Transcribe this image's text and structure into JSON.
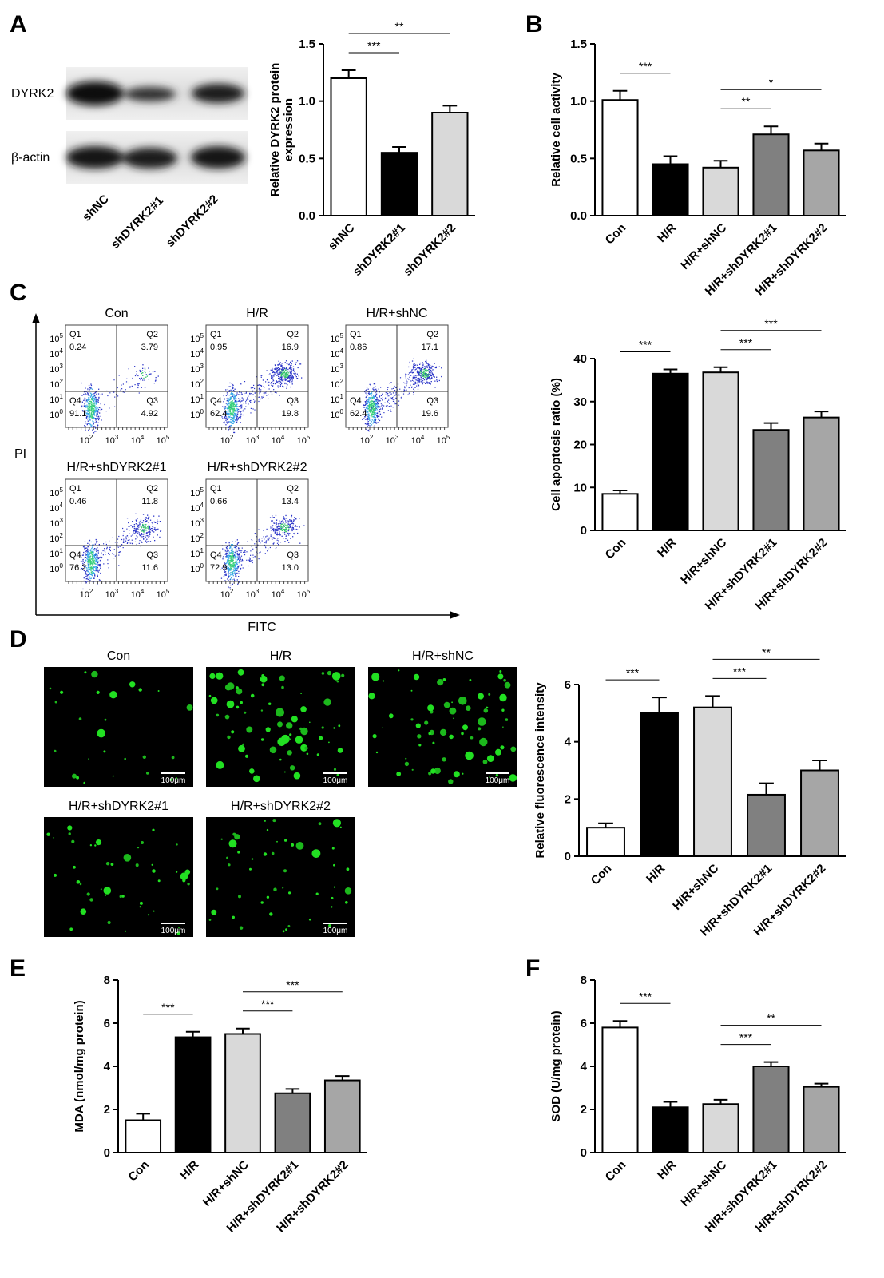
{
  "panels": [
    "A",
    "B",
    "C",
    "D",
    "E",
    "F"
  ],
  "blot": {
    "rows": [
      "DYRK2",
      "β-actin"
    ],
    "lanes": [
      "shNC",
      "shDYRK2#1",
      "shDYRK2#2"
    ]
  },
  "flow": {
    "y_label": "PI",
    "x_label": "FITC",
    "tick_base": "10",
    "xtick_exponents": [
      2,
      3,
      4,
      5
    ],
    "ytick_exponents": [
      0,
      1,
      2,
      3,
      4,
      5
    ],
    "quadrant_names": [
      "Q1",
      "Q2",
      "Q3",
      "Q4"
    ],
    "plots": [
      {
        "title": "Con",
        "quadrants": [
          "0.24",
          "3.79",
          "4.92",
          "91.1"
        ]
      },
      {
        "title": "H/R",
        "quadrants": [
          "0.95",
          "16.9",
          "19.8",
          "62.4"
        ]
      },
      {
        "title": "H/R+shNC",
        "quadrants": [
          "0.86",
          "17.1",
          "19.6",
          "62.4"
        ]
      },
      {
        "title": "H/R+shDYRK2#1",
        "quadrants": [
          "0.46",
          "11.8",
          "11.6",
          "76.2"
        ]
      },
      {
        "title": "H/R+shDYRK2#2",
        "quadrants": [
          "0.66",
          "13.4",
          "13.0",
          "72.9"
        ]
      }
    ]
  },
  "images": {
    "scale_bar": "100μm",
    "titles": [
      "Con",
      "H/R",
      "H/R+shNC",
      "H/R+shDYRK2#1",
      "H/R+shDYRK2#2"
    ]
  },
  "chart_data": [
    {
      "type": "bar",
      "y_label": [
        "Relative DYRK2 protein",
        "expression"
      ],
      "categories": [
        "shNC",
        "shDYRK2#1",
        "shDYRK2#2"
      ],
      "values": [
        1.2,
        0.55,
        0.9
      ],
      "errors": [
        0.07,
        0.05,
        0.06
      ],
      "colors": [
        "#ffffff",
        "#000000",
        "#d9d9d9"
      ],
      "ylim": [
        0,
        1.5
      ],
      "yticks": [
        {
          "value": 0,
          "label": "0.0"
        },
        {
          "value": 0.5,
          "label": "0.5"
        },
        {
          "value": 1,
          "label": "1.0"
        },
        {
          "value": 1.5,
          "label": "1.5"
        }
      ],
      "significance": [
        {
          "between": [
            "shNC",
            "shDYRK2#1"
          ],
          "label": "***"
        },
        {
          "between": [
            "shNC",
            "shDYRK2#2"
          ],
          "label": "**"
        }
      ]
    },
    {
      "type": "bar",
      "y_label": "Relative cell activity",
      "categories": [
        "Con",
        "H/R",
        "H/R+shNC",
        "H/R+shDYRK2#1",
        "H/R+shDYRK2#2"
      ],
      "values": [
        1.01,
        0.45,
        0.42,
        0.71,
        0.57
      ],
      "errors": [
        0.08,
        0.07,
        0.06,
        0.07,
        0.06
      ],
      "colors": [
        "#ffffff",
        "#000000",
        "#d9d9d9",
        "#808080",
        "#a6a6a6"
      ],
      "ylim": [
        0,
        1.5
      ],
      "yticks": [
        {
          "value": 0,
          "label": "0.0"
        },
        {
          "value": 0.5,
          "label": "0.5"
        },
        {
          "value": 1,
          "label": "1.0"
        },
        {
          "value": 1.5,
          "label": "1.5"
        }
      ],
      "significance": [
        {
          "between": [
            "Con",
            "H/R"
          ],
          "label": "***"
        },
        {
          "between": [
            "H/R+shNC",
            "H/R+shDYRK2#1"
          ],
          "label": "**"
        },
        {
          "between": [
            "H/R+shNC",
            "H/R+shDYRK2#2"
          ],
          "label": "*"
        }
      ]
    },
    {
      "type": "bar",
      "y_label": "Cell apoptosis ratio (%)",
      "categories": [
        "Con",
        "H/R",
        "H/R+shNC",
        "H/R+shDYRK2#1",
        "H/R+shDYRK2#2"
      ],
      "values": [
        8.5,
        36.5,
        36.8,
        23.4,
        26.3
      ],
      "errors": [
        0.8,
        1.0,
        1.2,
        1.6,
        1.4
      ],
      "colors": [
        "#ffffff",
        "#000000",
        "#d9d9d9",
        "#808080",
        "#a6a6a6"
      ],
      "ylim": [
        0,
        40
      ],
      "yticks": [
        0,
        10,
        20,
        30,
        40
      ],
      "significance": [
        {
          "between": [
            "Con",
            "H/R"
          ],
          "label": "***"
        },
        {
          "between": [
            "H/R+shNC",
            "H/R+shDYRK2#1"
          ],
          "label": "***"
        },
        {
          "between": [
            "H/R+shNC",
            "H/R+shDYRK2#2"
          ],
          "label": "***"
        }
      ]
    },
    {
      "type": "bar",
      "y_label": "Relative fluorescence intensity",
      "categories": [
        "Con",
        "H/R",
        "H/R+shNC",
        "H/R+shDYRK2#1",
        "H/R+shDYRK2#2"
      ],
      "values": [
        1.0,
        5.0,
        5.2,
        2.15,
        3.0
      ],
      "errors": [
        0.15,
        0.55,
        0.4,
        0.4,
        0.35
      ],
      "colors": [
        "#ffffff",
        "#000000",
        "#d9d9d9",
        "#808080",
        "#a6a6a6"
      ],
      "ylim": [
        0,
        6
      ],
      "yticks": [
        0,
        2,
        4,
        6
      ],
      "significance": [
        {
          "between": [
            "Con",
            "H/R"
          ],
          "label": "***"
        },
        {
          "between": [
            "H/R+shNC",
            "H/R+shDYRK2#1"
          ],
          "label": "***"
        },
        {
          "between": [
            "H/R+shNC",
            "H/R+shDYRK2#2"
          ],
          "label": "**"
        }
      ]
    },
    {
      "type": "bar",
      "y_label": "MDA (nmol/mg protein)",
      "categories": [
        "Con",
        "H/R",
        "H/R+shNC",
        "H/R+shDYRK2#1",
        "H/R+shDYRK2#2"
      ],
      "values": [
        1.5,
        5.35,
        5.5,
        2.75,
        3.35
      ],
      "errors": [
        0.3,
        0.25,
        0.25,
        0.2,
        0.2
      ],
      "colors": [
        "#ffffff",
        "#000000",
        "#d9d9d9",
        "#808080",
        "#a6a6a6"
      ],
      "ylim": [
        0,
        8
      ],
      "yticks": [
        0,
        2,
        4,
        6,
        8
      ],
      "significance": [
        {
          "between": [
            "Con",
            "H/R"
          ],
          "label": "***"
        },
        {
          "between": [
            "H/R+shNC",
            "H/R+shDYRK2#1"
          ],
          "label": "***"
        },
        {
          "between": [
            "H/R+shNC",
            "H/R+shDYRK2#2"
          ],
          "label": "***"
        }
      ]
    },
    {
      "type": "bar",
      "y_label": "SOD (U/mg protein)",
      "categories": [
        "Con",
        "H/R",
        "H/R+shNC",
        "H/R+shDYRK2#1",
        "H/R+shDYRK2#2"
      ],
      "values": [
        5.8,
        2.1,
        2.25,
        4.0,
        3.05
      ],
      "errors": [
        0.3,
        0.25,
        0.2,
        0.2,
        0.15
      ],
      "colors": [
        "#ffffff",
        "#000000",
        "#d9d9d9",
        "#808080",
        "#a6a6a6"
      ],
      "ylim": [
        0,
        8
      ],
      "yticks": [
        0,
        2,
        4,
        6,
        8
      ],
      "significance": [
        {
          "between": [
            "Con",
            "H/R"
          ],
          "label": "***"
        },
        {
          "between": [
            "H/R+shNC",
            "H/R+shDYRK2#1"
          ],
          "label": "***"
        },
        {
          "between": [
            "H/R+shNC",
            "H/R+shDYRK2#2"
          ],
          "label": "**"
        }
      ]
    }
  ]
}
